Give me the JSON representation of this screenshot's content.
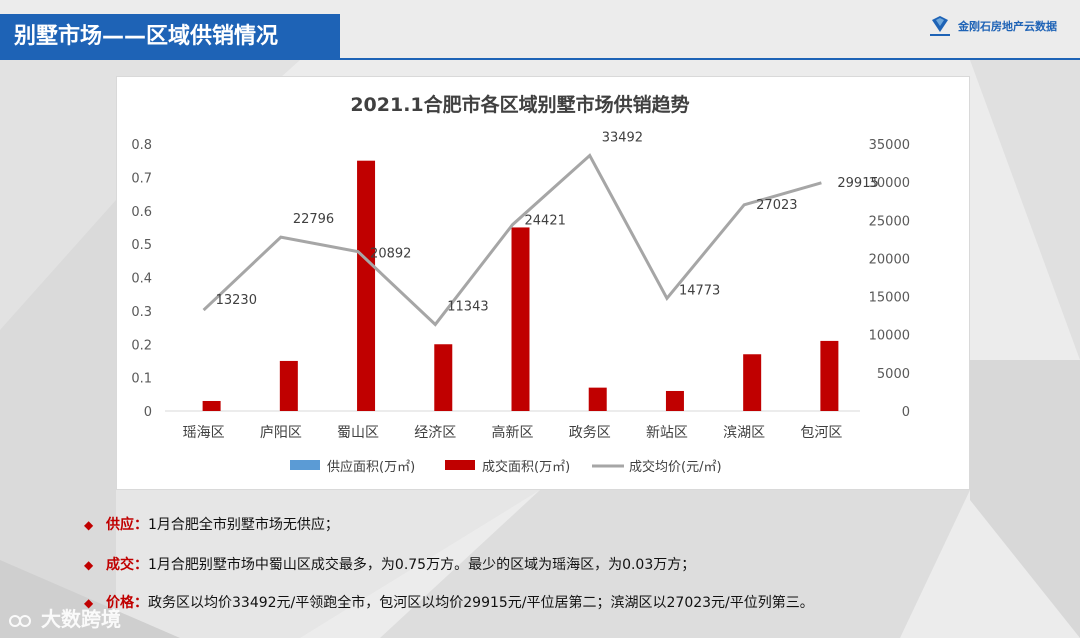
{
  "header": {
    "title": "别墅市场——区域供销情况"
  },
  "logo": {
    "text": "金刚石房地产云数据",
    "icon": "diamond-logo-icon",
    "color": "#1e63b6"
  },
  "chart_data": {
    "type": "bar+line",
    "title": "2021.1合肥市各区域别墅市场供销趋势",
    "categories": [
      "瑶海区",
      "庐阳区",
      "蜀山区",
      "经济区",
      "高新区",
      "政务区",
      "新站区",
      "滨湖区",
      "包河区"
    ],
    "series": [
      {
        "name": "供应面积(万㎡)",
        "type": "bar",
        "axis": "left",
        "color": "#5b9bd5",
        "values": [
          0,
          0,
          0,
          0,
          0,
          0,
          0,
          0,
          0
        ]
      },
      {
        "name": "成交面积(万㎡)",
        "type": "bar",
        "axis": "left",
        "color": "#c00000",
        "values": [
          0.03,
          0.15,
          0.75,
          0.2,
          0.55,
          0.07,
          0.06,
          0.17,
          0.21
        ]
      },
      {
        "name": "成交均价(元/㎡)",
        "type": "line",
        "axis": "right",
        "color": "#a6a6a6",
        "values": [
          13230,
          22796,
          20892,
          11343,
          24421,
          33492,
          14773,
          27023,
          29915
        ]
      }
    ],
    "ylim_left": [
      0,
      0.8
    ],
    "yticks_left": [
      "0",
      "0.1",
      "0.2",
      "0.3",
      "0.4",
      "0.5",
      "0.6",
      "0.7",
      "0.8"
    ],
    "ylim_right": [
      0,
      35000
    ],
    "yticks_right": [
      "0",
      "5000",
      "10000",
      "15000",
      "20000",
      "25000",
      "30000",
      "35000"
    ],
    "grid": false,
    "legend": "bottom"
  },
  "bullets": [
    {
      "label": "供应：",
      "text": "1月合肥全市别墅市场无供应；"
    },
    {
      "label": "成交：",
      "text": "1月合肥别墅市场中蜀山区成交最多，为0.75万方。最少的区域为瑶海区，为0.03万方；"
    },
    {
      "label": "价格：",
      "text": "政务区以均价33492元/平领跑全市，包河区以均价29915元/平位居第二；滨湖区以27023元/平位列第三。"
    }
  ],
  "watermark": {
    "text": "大数跨境"
  }
}
